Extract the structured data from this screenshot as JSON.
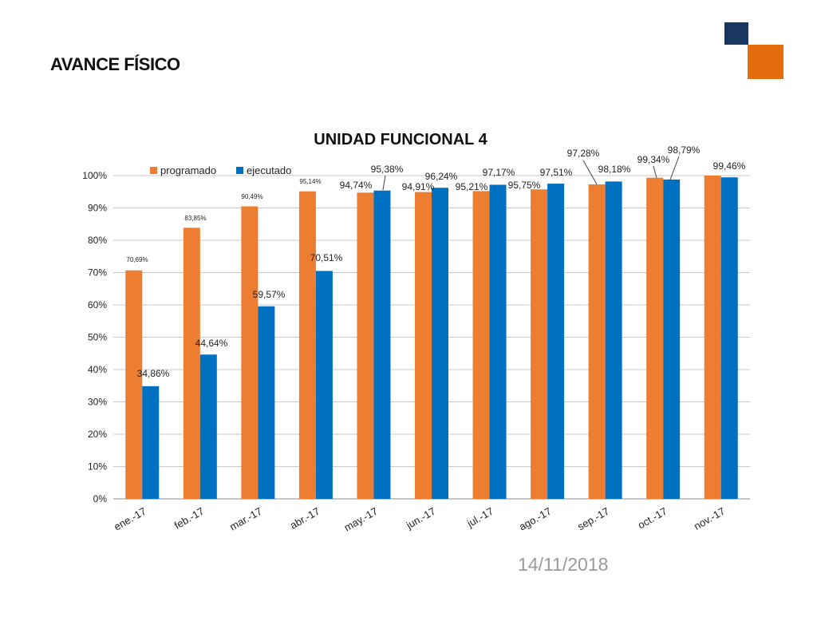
{
  "slide": {
    "title": "AVANCE FÍSICO",
    "date": "14/11/2018",
    "colors": {
      "dark_square": "#17375e",
      "orange_square": "#e46c0a"
    }
  },
  "chart_data": {
    "type": "bar",
    "title": "UNIDAD FUNCIONAL 4",
    "xlabel": "",
    "ylabel": "",
    "categories": [
      "ene.-17",
      "feb.-17",
      "mar.-17",
      "abr.-17",
      "may.-17",
      "jun.-17",
      "jul.-17",
      "ago.-17",
      "sep.-17",
      "oct.-17",
      "nov.-17"
    ],
    "series": [
      {
        "name": "programado",
        "color": "#ed7d31",
        "values": [
          70.69,
          83.85,
          90.49,
          95.14,
          94.74,
          94.91,
          95.21,
          95.75,
          97.28,
          99.34,
          100
        ],
        "labels": [
          "70,69%",
          "83,85%",
          "90,49%",
          "95,14%",
          "94,74%",
          "94,91%",
          "95,21%",
          "95,75%",
          "97,28%",
          "99,34%",
          ""
        ]
      },
      {
        "name": "ejecutado",
        "color": "#0070c0",
        "values": [
          34.86,
          44.64,
          59.57,
          70.51,
          95.38,
          96.24,
          97.17,
          97.51,
          98.18,
          98.79,
          99.46
        ],
        "labels": [
          "34,86%",
          "44,64%",
          "59,57%",
          "70,51%",
          "95,38%",
          "96,24%",
          "97,17%",
          "97,51%",
          "98,18%",
          "98,79%",
          "99,46%"
        ]
      }
    ],
    "yticks": [
      "0%",
      "10%",
      "20%",
      "30%",
      "40%",
      "50%",
      "60%",
      "70%",
      "80%",
      "90%",
      "100%"
    ],
    "ylim": [
      0,
      100
    ],
    "grid": true,
    "legend": "top-left"
  }
}
